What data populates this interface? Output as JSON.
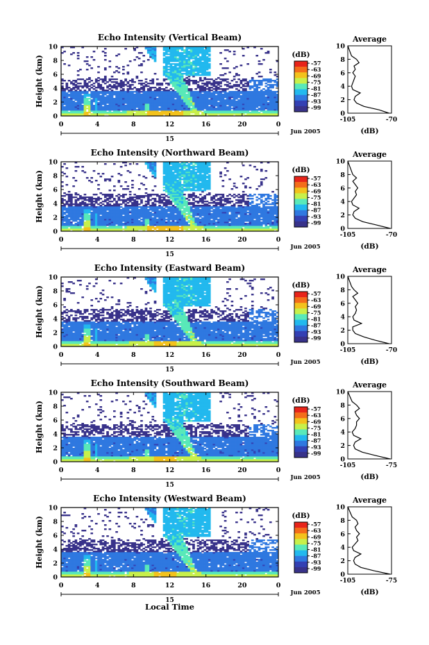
{
  "figure": {
    "xaxis_title": "Local Time",
    "date_label": "Jun 2005",
    "day_label": "15"
  },
  "colorbar": {
    "title": "(dB)",
    "tick_labels": [
      "-57",
      "-63",
      "-69",
      "-75",
      "-81",
      "-87",
      "-93",
      "-99"
    ],
    "colors": [
      "#e8241a",
      "#f46d1a",
      "#f3c21c",
      "#c8f04a",
      "#59e9b9",
      "#22b9ee",
      "#2f78e0",
      "#3340b3",
      "#38328a"
    ]
  },
  "chart_data": [
    {
      "type": "heatmap",
      "title": "Echo Intensity (Vertical Beam)",
      "ylabel": "Height (km)",
      "ylim": [
        0,
        10
      ],
      "yticks": [
        "0",
        "2",
        "4",
        "6",
        "8",
        "10"
      ],
      "xlim": [
        0,
        24
      ],
      "xticks": [
        "0",
        "4",
        "8",
        "12",
        "16",
        "20",
        "0"
      ],
      "zlim": [
        -99,
        -57
      ],
      "profile": {
        "title": "Average",
        "xlabel": "(dB)",
        "xlim": [
          -105,
          -70
        ],
        "xticks": [
          "-105",
          "-70"
        ],
        "height_km": [
          0,
          0.5,
          1,
          1.5,
          2,
          2.5,
          3,
          3.5,
          4,
          4.5,
          5,
          5.5,
          6,
          6.5,
          7,
          7.5,
          8,
          8.5,
          9,
          9.5,
          10
        ],
        "echo_db": [
          -72,
          -80,
          -92,
          -98,
          -100,
          -99,
          -95,
          -101,
          -102,
          -101,
          -100,
          -99,
          -101,
          -99,
          -100,
          -96,
          -98,
          -102,
          -103,
          -104,
          -105
        ]
      }
    },
    {
      "type": "heatmap",
      "title": "Echo Intensity (Northward Beam)",
      "ylabel": "Height (km)",
      "ylim": [
        0,
        10
      ],
      "yticks": [
        "0",
        "2",
        "4",
        "6",
        "8",
        "10"
      ],
      "xlim": [
        0,
        24
      ],
      "xticks": [
        "0",
        "4",
        "8",
        "12",
        "16",
        "20",
        "0"
      ],
      "zlim": [
        -99,
        -57
      ],
      "profile": {
        "title": "Average",
        "xlabel": "(dB)",
        "xlim": [
          -105,
          -70
        ],
        "xticks": [
          "-105",
          "-70"
        ],
        "height_km": [
          0,
          0.5,
          1,
          1.5,
          2,
          2.5,
          3,
          3.5,
          4,
          4.5,
          5,
          5.5,
          6,
          6.5,
          7,
          7.5,
          8,
          8.5,
          9,
          9.5,
          10
        ],
        "echo_db": [
          -71,
          -82,
          -93,
          -99,
          -101,
          -100,
          -96,
          -101,
          -102,
          -100,
          -98,
          -99,
          -97,
          -99,
          -101,
          -98,
          -101,
          -102,
          -103,
          -104,
          -105
        ]
      }
    },
    {
      "type": "heatmap",
      "title": "Echo Intensity (Eastward Beam)",
      "ylabel": "Height (km)",
      "ylim": [
        0,
        10
      ],
      "yticks": [
        "0",
        "2",
        "4",
        "6",
        "8",
        "10"
      ],
      "xlim": [
        0,
        24
      ],
      "xticks": [
        "0",
        "4",
        "8",
        "12",
        "16",
        "20",
        "0"
      ],
      "zlim": [
        -99,
        -57
      ],
      "profile": {
        "title": "Average",
        "xlabel": "(dB)",
        "xlim": [
          -105,
          -70
        ],
        "xticks": [
          "-105",
          "-70"
        ],
        "height_km": [
          0,
          0.5,
          1,
          1.5,
          2,
          2.5,
          3,
          3.5,
          4,
          4.5,
          5,
          5.5,
          6,
          6.5,
          7,
          7.5,
          8,
          8.5,
          9,
          9.5,
          10
        ],
        "echo_db": [
          -72,
          -83,
          -92,
          -99,
          -101,
          -101,
          -94,
          -100,
          -101,
          -99,
          -98,
          -99,
          -97,
          -99,
          -101,
          -97,
          -100,
          -102,
          -103,
          -104,
          -105
        ]
      }
    },
    {
      "type": "heatmap",
      "title": "Echo Intensity (Southward Beam)",
      "ylabel": "Height (km)",
      "ylim": [
        0,
        10
      ],
      "yticks": [
        "0",
        "2",
        "4",
        "6",
        "8",
        "10"
      ],
      "xlim": [
        0,
        24
      ],
      "xticks": [
        "0",
        "4",
        "8",
        "12",
        "16",
        "20",
        "0"
      ],
      "zlim": [
        -99,
        -57
      ],
      "profile": {
        "title": "Average",
        "xlabel": "(dB)",
        "xlim": [
          -105,
          -75
        ],
        "xticks": [
          "-105",
          "-75"
        ],
        "height_km": [
          0,
          0.5,
          1,
          1.5,
          2,
          2.5,
          3,
          3.5,
          4,
          4.5,
          5,
          5.5,
          6,
          6.5,
          7,
          7.5,
          8,
          8.5,
          9,
          9.5,
          10
        ],
        "echo_db": [
          -76,
          -86,
          -95,
          -100,
          -101,
          -100,
          -96,
          -101,
          -102,
          -100,
          -99,
          -99,
          -97,
          -99,
          -100,
          -97,
          -99,
          -102,
          -103,
          -104,
          -105
        ]
      }
    },
    {
      "type": "heatmap",
      "title": "Echo Intensity (Westward Beam)",
      "ylabel": "Height (km)",
      "ylim": [
        0,
        10
      ],
      "yticks": [
        "0",
        "2",
        "4",
        "6",
        "8",
        "10"
      ],
      "xlim": [
        0,
        24
      ],
      "xticks": [
        "0",
        "4",
        "8",
        "12",
        "16",
        "20",
        "0"
      ],
      "zlim": [
        -99,
        -57
      ],
      "profile": {
        "title": "Average",
        "xlabel": "(dB)",
        "xlim": [
          -105,
          -75
        ],
        "xticks": [
          "-105",
          "-75"
        ],
        "height_km": [
          0,
          0.5,
          1,
          1.5,
          2,
          2.5,
          3,
          3.5,
          4,
          4.5,
          5,
          5.5,
          6,
          6.5,
          7,
          7.5,
          8,
          8.5,
          9,
          9.5,
          10
        ],
        "echo_db": [
          -76,
          -87,
          -96,
          -100,
          -101,
          -100,
          -96,
          -101,
          -102,
          -100,
          -98,
          -99,
          -97,
          -99,
          -100,
          -98,
          -99,
          -102,
          -103,
          -104,
          -105
        ]
      }
    }
  ]
}
